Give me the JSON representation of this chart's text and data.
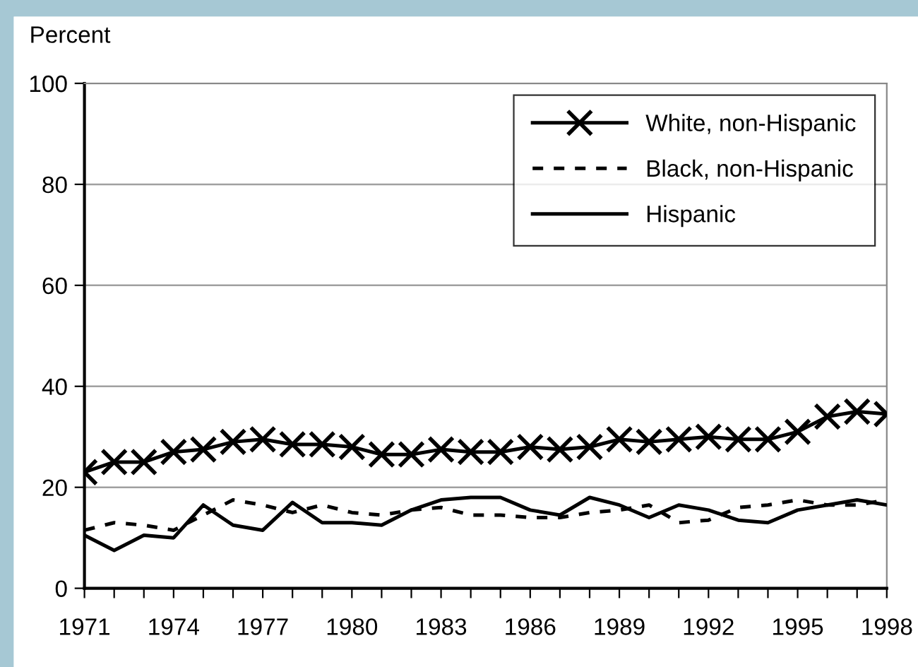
{
  "chart_data": {
    "type": "line",
    "ylabel": "Percent",
    "x": [
      1971,
      1972,
      1973,
      1974,
      1975,
      1976,
      1977,
      1978,
      1979,
      1980,
      1981,
      1982,
      1983,
      1984,
      1985,
      1986,
      1987,
      1988,
      1989,
      1990,
      1991,
      1992,
      1993,
      1994,
      1995,
      1996,
      1997,
      1998
    ],
    "series": [
      {
        "name": "White, non-Hispanic",
        "color": "#000000",
        "marker": "cross",
        "line_style": "solid",
        "values": [
          23,
          25,
          25,
          27,
          27.5,
          29,
          29.5,
          28.5,
          28.5,
          28,
          26.5,
          26.5,
          27.5,
          27,
          27,
          28,
          27.5,
          28,
          29.5,
          29,
          29.5,
          30,
          29.5,
          29.5,
          31,
          34,
          35,
          34.5
        ]
      },
      {
        "name": "Black, non-Hispanic",
        "color": "#000000",
        "marker": "none",
        "line_style": "dashed",
        "values": [
          11.5,
          13,
          12.5,
          11.5,
          14.5,
          17.5,
          16.5,
          15,
          16.5,
          15,
          14.5,
          15.5,
          16,
          14.5,
          14.5,
          14,
          14,
          15,
          15.5,
          16.5,
          13,
          13.5,
          16,
          16.5,
          17.5,
          16.5,
          16.5,
          17.5
        ]
      },
      {
        "name": "Hispanic",
        "color": "#000000",
        "marker": "none",
        "line_style": "solid",
        "values": [
          10.5,
          7.5,
          10.5,
          10,
          16.5,
          12.5,
          11.5,
          17,
          13,
          13,
          12.5,
          15.5,
          17.5,
          18,
          18,
          15.5,
          14.5,
          18,
          16.5,
          14,
          16.5,
          15.5,
          13.5,
          13,
          15.5,
          16.5,
          17.5,
          16.5
        ]
      }
    ],
    "xlim": [
      1971,
      1998
    ],
    "xticks": [
      1971,
      {
        "value": 1972,
        "label": null
      },
      {
        "value": 1973,
        "label": null
      },
      1974,
      {
        "value": 1975,
        "label": null
      },
      {
        "value": 1976,
        "label": null
      },
      1977,
      {
        "value": 1978,
        "label": null
      },
      {
        "value": 1979,
        "label": null
      },
      1980,
      {
        "value": 1981,
        "label": null
      },
      {
        "value": 1982,
        "label": null
      },
      1983,
      {
        "value": 1984,
        "label": null
      },
      {
        "value": 1985,
        "label": null
      },
      1986,
      {
        "value": 1987,
        "label": null
      },
      {
        "value": 1988,
        "label": null
      },
      1989,
      {
        "value": 1990,
        "label": null
      },
      {
        "value": 1991,
        "label": null
      },
      1992,
      {
        "value": 1993,
        "label": null
      },
      {
        "value": 1994,
        "label": null
      },
      1995,
      {
        "value": 1996,
        "label": null
      },
      {
        "value": 1997,
        "label": null
      },
      1998
    ],
    "ylim": [
      0,
      100
    ],
    "yticks": [
      0,
      20,
      40,
      60,
      80,
      100
    ],
    "grid": "y",
    "legend": "top right"
  }
}
